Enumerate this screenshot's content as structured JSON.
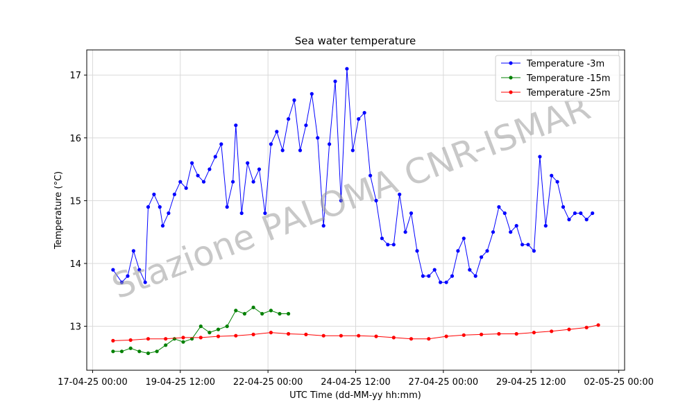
{
  "chart_data": {
    "type": "line",
    "title": "Sea water temperature",
    "xlabel": "UTC Time (dd-MM-yy hh:mm)",
    "ylabel": "Temperature (°C)",
    "watermark": "Stazione PALOMA CNR-ISMAR",
    "x_ticks": [
      "17-04-25 00:00",
      "19-04-25 12:00",
      "22-04-25 00:00",
      "24-04-25 12:00",
      "27-04-25 00:00",
      "29-04-25 12:00",
      "02-05-25 00:00"
    ],
    "y_ticks": [
      13,
      14,
      15,
      16,
      17
    ],
    "grid": true,
    "legend_position": "top-right",
    "series": [
      {
        "name": "Temperature -3m",
        "color": "#0000ff",
        "x": [
          "17-04-25 14:00",
          "17-04-25 20:00",
          "18-04-25 00:00",
          "18-04-25 04:00",
          "18-04-25 08:00",
          "18-04-25 12:00",
          "18-04-25 14:00",
          "18-04-25 18:00",
          "18-04-25 22:00",
          "19-04-25 00:00",
          "19-04-25 04:00",
          "19-04-25 08:00",
          "19-04-25 12:00",
          "19-04-25 16:00",
          "19-04-25 20:00",
          "20-04-25 00:00",
          "20-04-25 04:00",
          "20-04-25 08:00",
          "20-04-25 12:00",
          "20-04-25 16:00",
          "20-04-25 20:00",
          "21-04-25 00:00",
          "21-04-25 02:00",
          "21-04-25 06:00",
          "21-04-25 10:00",
          "21-04-25 14:00",
          "21-04-25 18:00",
          "21-04-25 22:00",
          "22-04-25 02:00",
          "22-04-25 06:00",
          "22-04-25 10:00",
          "22-04-25 14:00",
          "22-04-25 18:00",
          "22-04-25 22:00",
          "23-04-25 02:00",
          "23-04-25 06:00",
          "23-04-25 10:00",
          "23-04-25 14:00",
          "23-04-25 18:00",
          "23-04-25 22:00",
          "24-04-25 02:00",
          "24-04-25 06:00",
          "24-04-25 10:00",
          "24-04-25 14:00",
          "24-04-25 18:00",
          "24-04-25 22:00",
          "25-04-25 02:00",
          "25-04-25 06:00",
          "25-04-25 10:00",
          "25-04-25 14:00",
          "25-04-25 18:00",
          "25-04-25 22:00",
          "26-04-25 02:00",
          "26-04-25 06:00",
          "26-04-25 10:00",
          "26-04-25 14:00",
          "26-04-25 18:00",
          "26-04-25 22:00",
          "27-04-25 02:00",
          "27-04-25 06:00",
          "27-04-25 10:00",
          "27-04-25 14:00",
          "27-04-25 18:00",
          "27-04-25 22:00",
          "28-04-25 02:00",
          "28-04-25 06:00",
          "28-04-25 10:00",
          "28-04-25 14:00",
          "28-04-25 18:00",
          "28-04-25 22:00",
          "29-04-25 02:00",
          "29-04-25 06:00",
          "29-04-25 10:00",
          "29-04-25 14:00",
          "29-04-25 18:00",
          "29-04-25 22:00",
          "30-04-25 02:00",
          "30-04-25 06:00",
          "30-04-25 10:00",
          "30-04-25 14:00",
          "30-04-25 18:00",
          "30-04-25 22:00",
          "01-05-25 02:00",
          "01-05-25 06:00"
        ],
        "y": [
          13.9,
          13.7,
          13.8,
          14.2,
          13.9,
          13.7,
          14.9,
          15.1,
          14.9,
          14.6,
          14.8,
          15.1,
          15.3,
          15.2,
          15.6,
          15.4,
          15.3,
          15.5,
          15.7,
          15.9,
          14.9,
          15.3,
          16.2,
          14.8,
          15.6,
          15.3,
          15.5,
          14.8,
          15.9,
          16.1,
          15.8,
          16.3,
          16.6,
          15.8,
          16.2,
          16.7,
          16.0,
          14.6,
          15.9,
          16.9,
          15.0,
          17.1,
          15.8,
          16.3,
          16.4,
          15.4,
          15.0,
          14.4,
          14.3,
          14.3,
          15.1,
          14.5,
          14.8,
          14.2,
          13.8,
          13.8,
          13.9,
          13.7,
          13.7,
          13.8,
          14.2,
          14.4,
          13.9,
          13.8,
          14.1,
          14.2,
          14.5,
          14.9,
          14.8,
          14.5,
          14.6,
          14.3,
          14.3,
          14.2,
          15.7,
          14.6,
          15.4,
          15.3,
          14.9,
          14.7,
          14.8,
          14.8,
          14.7,
          14.8
        ]
      },
      {
        "name": "Temperature -15m",
        "color": "#008000",
        "x": [
          "17-04-25 14:00",
          "17-04-25 20:00",
          "18-04-25 02:00",
          "18-04-25 08:00",
          "18-04-25 14:00",
          "18-04-25 20:00",
          "19-04-25 02:00",
          "19-04-25 08:00",
          "19-04-25 14:00",
          "19-04-25 20:00",
          "20-04-25 02:00",
          "20-04-25 08:00",
          "20-04-25 14:00",
          "20-04-25 20:00",
          "21-04-25 02:00",
          "21-04-25 08:00",
          "21-04-25 14:00",
          "21-04-25 20:00",
          "22-04-25 02:00",
          "22-04-25 08:00",
          "22-04-25 14:00"
        ],
        "y": [
          12.6,
          12.6,
          12.65,
          12.6,
          12.57,
          12.6,
          12.7,
          12.8,
          12.75,
          12.8,
          13.0,
          12.9,
          12.95,
          13.0,
          13.25,
          13.2,
          13.3,
          13.2,
          13.25,
          13.2,
          13.2
        ]
      },
      {
        "name": "Temperature -25m",
        "color": "#ff0000",
        "x": [
          "17-04-25 14:00",
          "18-04-25 02:00",
          "18-04-25 14:00",
          "19-04-25 02:00",
          "19-04-25 14:00",
          "20-04-25 02:00",
          "20-04-25 14:00",
          "21-04-25 02:00",
          "21-04-25 14:00",
          "22-04-25 02:00",
          "22-04-25 14:00",
          "23-04-25 02:00",
          "23-04-25 14:00",
          "24-04-25 02:00",
          "24-04-25 14:00",
          "25-04-25 02:00",
          "25-04-25 14:00",
          "26-04-25 02:00",
          "26-04-25 14:00",
          "27-04-25 02:00",
          "27-04-25 14:00",
          "28-04-25 02:00",
          "28-04-25 14:00",
          "29-04-25 02:00",
          "29-04-25 14:00",
          "30-04-25 02:00",
          "30-04-25 14:00",
          "01-05-25 02:00",
          "01-05-25 10:00"
        ],
        "y": [
          12.77,
          12.78,
          12.8,
          12.8,
          12.82,
          12.82,
          12.84,
          12.85,
          12.87,
          12.9,
          12.88,
          12.87,
          12.85,
          12.85,
          12.85,
          12.84,
          12.82,
          12.8,
          12.8,
          12.84,
          12.86,
          12.87,
          12.88,
          12.88,
          12.9,
          12.92,
          12.95,
          12.98,
          13.02
        ]
      }
    ]
  }
}
